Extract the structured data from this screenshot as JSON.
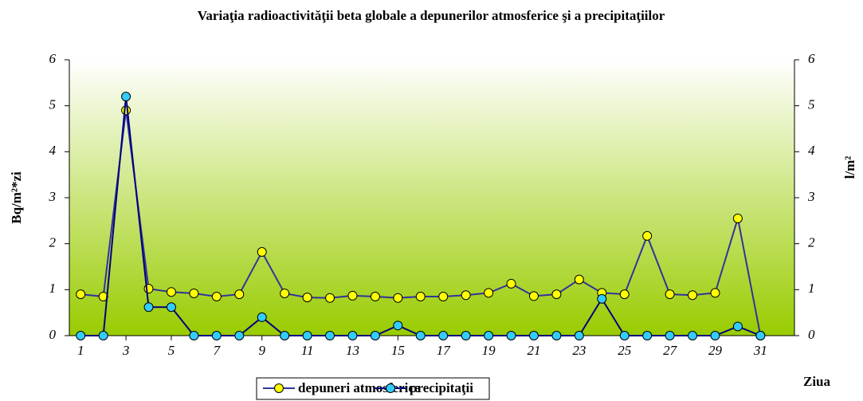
{
  "chart_data": {
    "type": "line",
    "title": "Variaţia radioactivităţii beta globale a depunerilor atmosferice şi a precipitaţiilor",
    "x_label": "Ziua",
    "y_label": "Bq/m²*zi",
    "y2_label": "l/m²",
    "x": [
      1,
      2,
      3,
      4,
      5,
      6,
      7,
      8,
      9,
      10,
      11,
      12,
      13,
      14,
      15,
      16,
      17,
      18,
      19,
      20,
      21,
      22,
      23,
      24,
      25,
      26,
      27,
      28,
      29,
      30,
      31
    ],
    "xlim": [
      0.5,
      32.5
    ],
    "xticks": [
      1,
      3,
      5,
      7,
      9,
      11,
      13,
      15,
      17,
      19,
      21,
      23,
      25,
      27,
      29,
      31
    ],
    "ylim": [
      0,
      6
    ],
    "yticks": [
      0,
      1,
      2,
      3,
      4,
      5,
      6
    ],
    "y2lim": [
      0,
      6
    ],
    "y2ticks": [
      0,
      1,
      2,
      3,
      4,
      5,
      6
    ],
    "series": [
      {
        "name": "depuneri atmosferice",
        "color": "#333399",
        "marker_color": "#ffff00",
        "values": [
          0.9,
          0.85,
          4.9,
          1.02,
          0.95,
          0.92,
          0.85,
          0.9,
          1.82,
          0.92,
          0.83,
          0.82,
          0.87,
          0.85,
          0.82,
          0.85,
          0.85,
          0.88,
          0.93,
          1.13,
          0.86,
          0.9,
          1.22,
          0.93,
          0.9,
          2.17,
          0.9,
          0.88,
          0.93,
          2.55,
          0
        ]
      },
      {
        "name": "precipitaţii",
        "color": "#000080",
        "marker_color": "#33ccff",
        "axis": "y2",
        "values": [
          0,
          0,
          5.2,
          0.62,
          0.62,
          0,
          0,
          0,
          0.4,
          0,
          0,
          0,
          0,
          0,
          0.22,
          0,
          0,
          0,
          0,
          0,
          0,
          0,
          0,
          0.8,
          0,
          0,
          0,
          0,
          0,
          0.2,
          0
        ]
      }
    ]
  }
}
